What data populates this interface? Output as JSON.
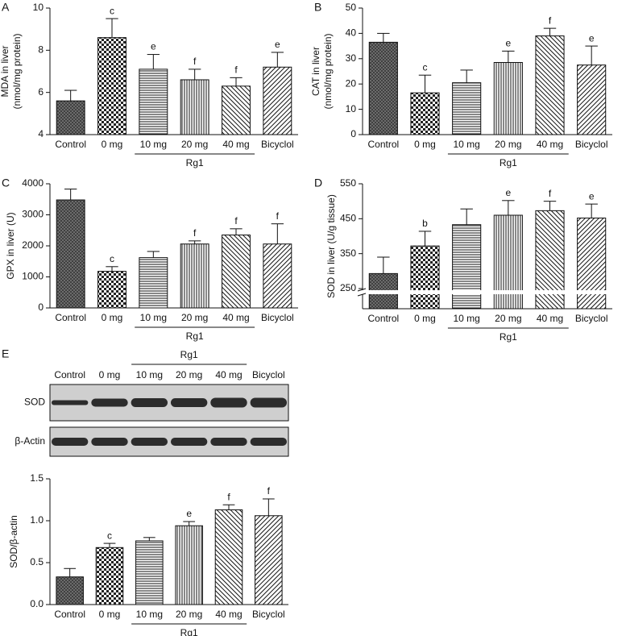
{
  "chart_data": [
    {
      "type": "bar",
      "panel": "A",
      "ylabel": [
        "MDA in liver",
        "(nmol/mg protein)"
      ],
      "categories": [
        "Control",
        "0 mg",
        "10 mg",
        "20 mg",
        "40 mg",
        "Bicyclol"
      ],
      "group": "Rg1",
      "values": [
        5.6,
        8.6,
        7.1,
        6.6,
        6.3,
        7.2
      ],
      "errors": [
        0.5,
        0.9,
        0.7,
        0.5,
        0.4,
        0.7
      ],
      "sig": [
        null,
        "c",
        "e",
        "f",
        "f",
        "e"
      ],
      "patterns": [
        "dark",
        "check",
        "hlines",
        "vlines",
        "diag",
        "diag2"
      ],
      "ylim": [
        4,
        10
      ],
      "yticks": [
        4,
        6,
        8,
        10
      ]
    },
    {
      "type": "bar",
      "panel": "B",
      "ylabel": [
        "CAT in liver",
        "(nmol/mg protein)"
      ],
      "categories": [
        "Control",
        "0 mg",
        "10 mg",
        "20 mg",
        "40 mg",
        "Bicyclol"
      ],
      "group": "Rg1",
      "values": [
        36.5,
        16.5,
        20.5,
        28.5,
        39,
        27.5
      ],
      "errors": [
        3.5,
        7,
        5,
        4.5,
        3,
        7.5
      ],
      "sig": [
        null,
        "c",
        null,
        "e",
        "f",
        "e"
      ],
      "patterns": [
        "dark",
        "check",
        "hlines",
        "vlines",
        "diag",
        "diag2"
      ],
      "ylim": [
        0,
        50
      ],
      "yticks": [
        0,
        10,
        20,
        30,
        40,
        50
      ]
    },
    {
      "type": "bar",
      "panel": "C",
      "ylabel": [
        "GPX in liver (U)"
      ],
      "categories": [
        "Control",
        "0 mg",
        "10 mg",
        "20 mg",
        "40 mg",
        "Bicyclol"
      ],
      "group": "Rg1",
      "values": [
        3480,
        1180,
        1620,
        2060,
        2350,
        2060
      ],
      "errors": [
        350,
        150,
        200,
        100,
        200,
        650
      ],
      "sig": [
        null,
        "c",
        null,
        "f",
        "f",
        "f"
      ],
      "patterns": [
        "dark",
        "check",
        "hlines",
        "vlines",
        "diag",
        "diag2"
      ],
      "ylim": [
        0,
        4000
      ],
      "yticks": [
        0,
        1000,
        2000,
        3000,
        4000
      ]
    },
    {
      "type": "bar",
      "panel": "D",
      "ylabel": [
        "SOD in liver (U/g tissue)"
      ],
      "categories": [
        "Control",
        "0 mg",
        "10 mg",
        "20 mg",
        "40 mg",
        "Bicyclol"
      ],
      "group": "Rg1",
      "values": [
        293,
        372,
        433,
        460,
        473,
        452
      ],
      "errors": [
        47,
        42,
        45,
        42,
        27,
        40
      ],
      "sig": [
        null,
        "b",
        null,
        "e",
        "f",
        "e"
      ],
      "patterns": [
        "dark",
        "check",
        "hlines",
        "vlines",
        "diag",
        "diag2"
      ],
      "ylim": [
        250,
        550
      ],
      "yticks": [
        250,
        350,
        450,
        550
      ],
      "axis_break": true
    },
    {
      "type": "bar",
      "panel": "E",
      "ylabel": [
        "SOD/β-actin"
      ],
      "blot": {
        "lanes": [
          "Control",
          "0 mg",
          "10 mg",
          "20 mg",
          "40 mg",
          "Bicyclol"
        ],
        "group": "Rg1",
        "rows": [
          "SOD",
          "β-Actin"
        ]
      },
      "categories": [
        "Control",
        "0 mg",
        "10 mg",
        "20 mg",
        "40 mg",
        "Bicyclol"
      ],
      "group": "Rg1",
      "values": [
        0.33,
        0.68,
        0.76,
        0.94,
        1.13,
        1.06
      ],
      "errors": [
        0.1,
        0.05,
        0.04,
        0.05,
        0.06,
        0.2
      ],
      "sig": [
        null,
        "c",
        null,
        "e",
        "f",
        "f"
      ],
      "patterns": [
        "dark",
        "check",
        "hlines",
        "vlines",
        "diag",
        "diag2"
      ],
      "ylim": [
        0,
        1.5
      ],
      "yticks": [
        {
          "value": 0,
          "label": "0.0"
        },
        {
          "value": 0.5,
          "label": "0.5"
        },
        {
          "value": 1,
          "label": "1.0"
        },
        {
          "value": 1.5,
          "label": "1.5"
        }
      ]
    }
  ]
}
